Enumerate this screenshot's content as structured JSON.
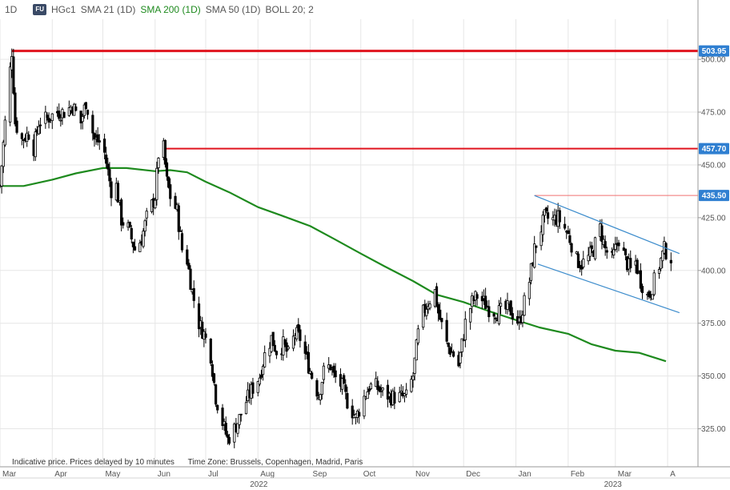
{
  "header": {
    "interval": "1D",
    "logo": "FU",
    "symbol": "HGc1",
    "indicators": [
      {
        "label": "SMA 21 (1D)",
        "color": "#555555"
      },
      {
        "label": "SMA 200 (1D)",
        "color": "#1e8a1e"
      },
      {
        "label": "SMA 50 (1D)",
        "color": "#555555"
      },
      {
        "label": "BOLL 20; 2",
        "color": "#555555"
      }
    ]
  },
  "footer": {
    "note": "Indicative price. Prices delayed by 10 minutes",
    "timezone": "Time Zone: Brussels, Copenhagen, Madrid, Paris"
  },
  "chart_data": {
    "type": "candlestick",
    "y_ticks": [
      325,
      350,
      375,
      400,
      425,
      450,
      475,
      500
    ],
    "y_tick_labels": [
      "325.00",
      "350.00",
      "375.00",
      "400.00",
      "425.00",
      "450.00",
      "475.00",
      "500.00"
    ],
    "ylim": [
      307,
      519
    ],
    "xlim": [
      "2022-03-01",
      "2023-04-19"
    ],
    "month_ticks": [
      {
        "label": "Mar",
        "date": "2022-03-01"
      },
      {
        "label": "Apr",
        "date": "2022-04-01"
      },
      {
        "label": "May",
        "date": "2022-05-01"
      },
      {
        "label": "Jun",
        "date": "2022-06-01"
      },
      {
        "label": "Jul",
        "date": "2022-07-01"
      },
      {
        "label": "Aug",
        "date": "2022-08-01"
      },
      {
        "label": "Sep",
        "date": "2022-09-01"
      },
      {
        "label": "Oct",
        "date": "2022-10-01"
      },
      {
        "label": "Nov",
        "date": "2022-11-01"
      },
      {
        "label": "Dec",
        "date": "2022-12-01"
      },
      {
        "label": "Jan",
        "date": "2023-01-01"
      },
      {
        "label": "Feb",
        "date": "2023-02-01"
      },
      {
        "label": "Mar",
        "date": "2023-03-01"
      },
      {
        "label": "A",
        "date": "2023-04-01"
      }
    ],
    "year_labels": [
      {
        "label": "2022",
        "date": "2022-08-01"
      },
      {
        "label": "2023",
        "date": "2023-02-27"
      }
    ],
    "price_series": [
      [
        "2022-03-01",
        440
      ],
      [
        "2022-03-04",
        470
      ],
      [
        "2022-03-07",
        495
      ],
      [
        "2022-03-08",
        503.95
      ],
      [
        "2022-03-10",
        470
      ],
      [
        "2022-03-14",
        462
      ],
      [
        "2022-03-18",
        465
      ],
      [
        "2022-03-21",
        458
      ],
      [
        "2022-03-24",
        470
      ],
      [
        "2022-03-29",
        472
      ],
      [
        "2022-04-04",
        475
      ],
      [
        "2022-04-08",
        475
      ],
      [
        "2022-04-13",
        478
      ],
      [
        "2022-04-18",
        470
      ],
      [
        "2022-04-21",
        480
      ],
      [
        "2022-04-26",
        462
      ],
      [
        "2022-05-01",
        460
      ],
      [
        "2022-05-06",
        438
      ],
      [
        "2022-05-09",
        440
      ],
      [
        "2022-05-12",
        424
      ],
      [
        "2022-05-16",
        420
      ],
      [
        "2022-05-20",
        410
      ],
      [
        "2022-05-24",
        415
      ],
      [
        "2022-05-27",
        425
      ],
      [
        "2022-06-01",
        435
      ],
      [
        "2022-06-03",
        455
      ],
      [
        "2022-06-06",
        457.7
      ],
      [
        "2022-06-08",
        442
      ],
      [
        "2022-06-10",
        435
      ],
      [
        "2022-06-14",
        428
      ],
      [
        "2022-06-17",
        410
      ],
      [
        "2022-06-20",
        405
      ],
      [
        "2022-06-23",
        390
      ],
      [
        "2022-06-27",
        375
      ],
      [
        "2022-06-30",
        370
      ],
      [
        "2022-07-04",
        360
      ],
      [
        "2022-07-07",
        340
      ],
      [
        "2022-07-11",
        328
      ],
      [
        "2022-07-14",
        320
      ],
      [
        "2022-07-18",
        325
      ],
      [
        "2022-07-21",
        330
      ],
      [
        "2022-07-25",
        338
      ],
      [
        "2022-07-28",
        343
      ],
      [
        "2022-08-02",
        350
      ],
      [
        "2022-08-05",
        360
      ],
      [
        "2022-08-09",
        368
      ],
      [
        "2022-08-12",
        362
      ],
      [
        "2022-08-16",
        365
      ],
      [
        "2022-08-19",
        360
      ],
      [
        "2022-08-23",
        370
      ],
      [
        "2022-08-26",
        368
      ],
      [
        "2022-08-31",
        355
      ],
      [
        "2022-09-02",
        350
      ],
      [
        "2022-09-06",
        341
      ],
      [
        "2022-09-09",
        352
      ],
      [
        "2022-09-13",
        355
      ],
      [
        "2022-09-15",
        350
      ],
      [
        "2022-09-20",
        345
      ],
      [
        "2022-09-23",
        338
      ],
      [
        "2022-09-28",
        330
      ],
      [
        "2022-10-03",
        340
      ],
      [
        "2022-10-06",
        345
      ],
      [
        "2022-10-10",
        345
      ],
      [
        "2022-10-14",
        342
      ],
      [
        "2022-10-19",
        340
      ],
      [
        "2022-10-24",
        340
      ],
      [
        "2022-10-28",
        340
      ],
      [
        "2022-11-01",
        350
      ],
      [
        "2022-11-04",
        370
      ],
      [
        "2022-11-07",
        380
      ],
      [
        "2022-11-10",
        385
      ],
      [
        "2022-11-14",
        390
      ],
      [
        "2022-11-16",
        380
      ],
      [
        "2022-11-21",
        365
      ],
      [
        "2022-11-25",
        360
      ],
      [
        "2022-11-28",
        355
      ],
      [
        "2022-11-30",
        365
      ],
      [
        "2022-12-02",
        375
      ],
      [
        "2022-12-06",
        385
      ],
      [
        "2022-12-09",
        388
      ],
      [
        "2022-12-13",
        385
      ],
      [
        "2022-12-16",
        382
      ],
      [
        "2022-12-21",
        380
      ],
      [
        "2022-12-28",
        382
      ],
      [
        "2023-01-03",
        375
      ],
      [
        "2023-01-06",
        385
      ],
      [
        "2023-01-09",
        395
      ],
      [
        "2023-01-12",
        410
      ],
      [
        "2023-01-16",
        420
      ],
      [
        "2023-01-18",
        425
      ],
      [
        "2023-01-23",
        424
      ],
      [
        "2023-01-26",
        425
      ],
      [
        "2023-01-30",
        420
      ],
      [
        "2023-02-02",
        415
      ],
      [
        "2023-02-06",
        405
      ],
      [
        "2023-02-09",
        403
      ],
      [
        "2023-02-13",
        406
      ],
      [
        "2023-02-16",
        410
      ],
      [
        "2023-02-20",
        420
      ],
      [
        "2023-02-23",
        410
      ],
      [
        "2023-02-27",
        405
      ],
      [
        "2023-03-01",
        410
      ],
      [
        "2023-03-03",
        415
      ],
      [
        "2023-03-07",
        405
      ],
      [
        "2023-03-10",
        400
      ],
      [
        "2023-03-13",
        404
      ],
      [
        "2023-03-16",
        395
      ],
      [
        "2023-03-20",
        388
      ],
      [
        "2023-03-22",
        390
      ],
      [
        "2023-03-24",
        395
      ],
      [
        "2023-03-28",
        405
      ],
      [
        "2023-03-30",
        410
      ],
      [
        "2023-04-03",
        406
      ]
    ],
    "sma_200": [
      [
        "2022-03-01",
        440
      ],
      [
        "2022-03-15",
        440
      ],
      [
        "2022-04-01",
        443
      ],
      [
        "2022-04-15",
        446
      ],
      [
        "2022-05-01",
        448.5
      ],
      [
        "2022-05-15",
        448.5
      ],
      [
        "2022-06-01",
        447
      ],
      [
        "2022-06-10",
        447.5
      ],
      [
        "2022-06-20",
        446.5
      ],
      [
        "2022-07-01",
        442
      ],
      [
        "2022-07-15",
        437
      ],
      [
        "2022-08-01",
        430
      ],
      [
        "2022-08-15",
        426
      ],
      [
        "2022-09-01",
        421
      ],
      [
        "2022-09-15",
        415
      ],
      [
        "2022-10-01",
        408
      ],
      [
        "2022-10-15",
        402
      ],
      [
        "2022-11-01",
        395
      ],
      [
        "2022-11-15",
        388.5
      ],
      [
        "2022-12-01",
        385
      ],
      [
        "2022-12-15",
        381
      ],
      [
        "2023-01-01",
        376.5
      ],
      [
        "2023-01-15",
        373
      ],
      [
        "2023-02-01",
        370
      ],
      [
        "2023-02-15",
        365
      ],
      [
        "2023-03-01",
        362
      ],
      [
        "2023-03-15",
        361
      ],
      [
        "2023-03-31",
        357
      ]
    ],
    "horizontal_levels": [
      {
        "value": 503.95,
        "label": "503.95",
        "color": "#e0141e",
        "from": "2022-03-08",
        "width": 3
      },
      {
        "value": 457.7,
        "label": "457.70",
        "color": "#e0141e",
        "from": "2022-06-06",
        "width": 2
      },
      {
        "value": 435.5,
        "label": "435.50",
        "color": "#f07070",
        "from": "2023-01-12",
        "width": 1
      }
    ],
    "trend_channel": {
      "color": "#3c8ccc",
      "upper": [
        [
          "2023-01-12",
          435.5
        ],
        [
          "2023-04-08",
          408
        ]
      ],
      "lower": [
        [
          "2023-01-14",
          403
        ],
        [
          "2023-04-08",
          380
        ]
      ]
    }
  }
}
